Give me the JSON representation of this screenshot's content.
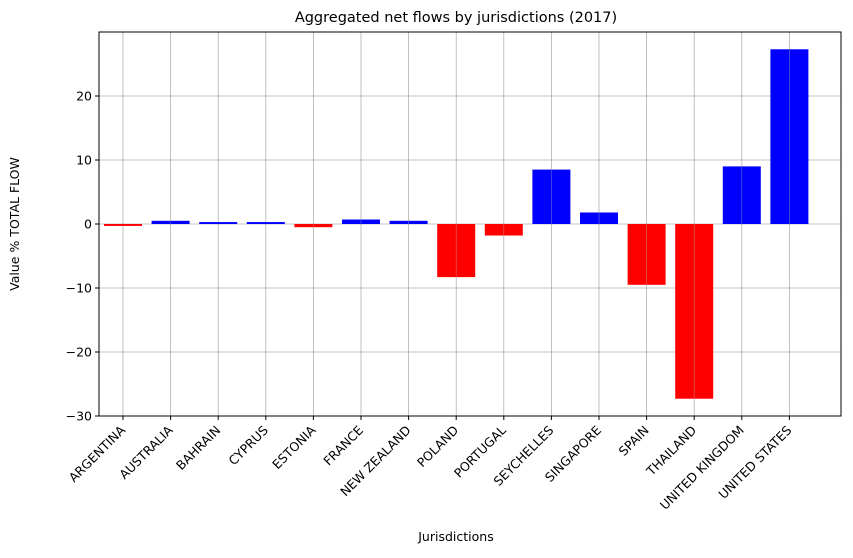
{
  "chart_data": {
    "type": "bar",
    "title": "Aggregated net flows by jurisdictions (2017)",
    "xlabel": "Jurisdictions",
    "ylabel": "Value % TOTAL FLOW",
    "categories": [
      "ARGENTINA",
      "AUSTRALIA",
      "BAHRAIN",
      "CYPRUS",
      "ESTONIA",
      "FRANCE",
      "NEW ZEALAND",
      "POLAND",
      "PORTUGAL",
      "SEYCHELLES",
      "SINGAPORE",
      "SPAIN",
      "THAILAND",
      "UNITED KINGDOM",
      "UNITED STATES"
    ],
    "values": [
      -0.3,
      0.5,
      0.3,
      0.3,
      -0.5,
      0.7,
      0.5,
      -8.3,
      -1.8,
      8.5,
      1.8,
      -9.5,
      -27.3,
      9.0,
      27.3
    ],
    "ylim": [
      -30,
      30
    ],
    "yticks": [
      -30,
      -20,
      -10,
      0,
      10,
      20
    ],
    "ytick_labels": [
      "−30",
      "−20",
      "−10",
      "0",
      "10",
      "20"
    ],
    "grid": true,
    "colors": {
      "positive": "#0000ff",
      "negative": "#ff0000"
    }
  }
}
